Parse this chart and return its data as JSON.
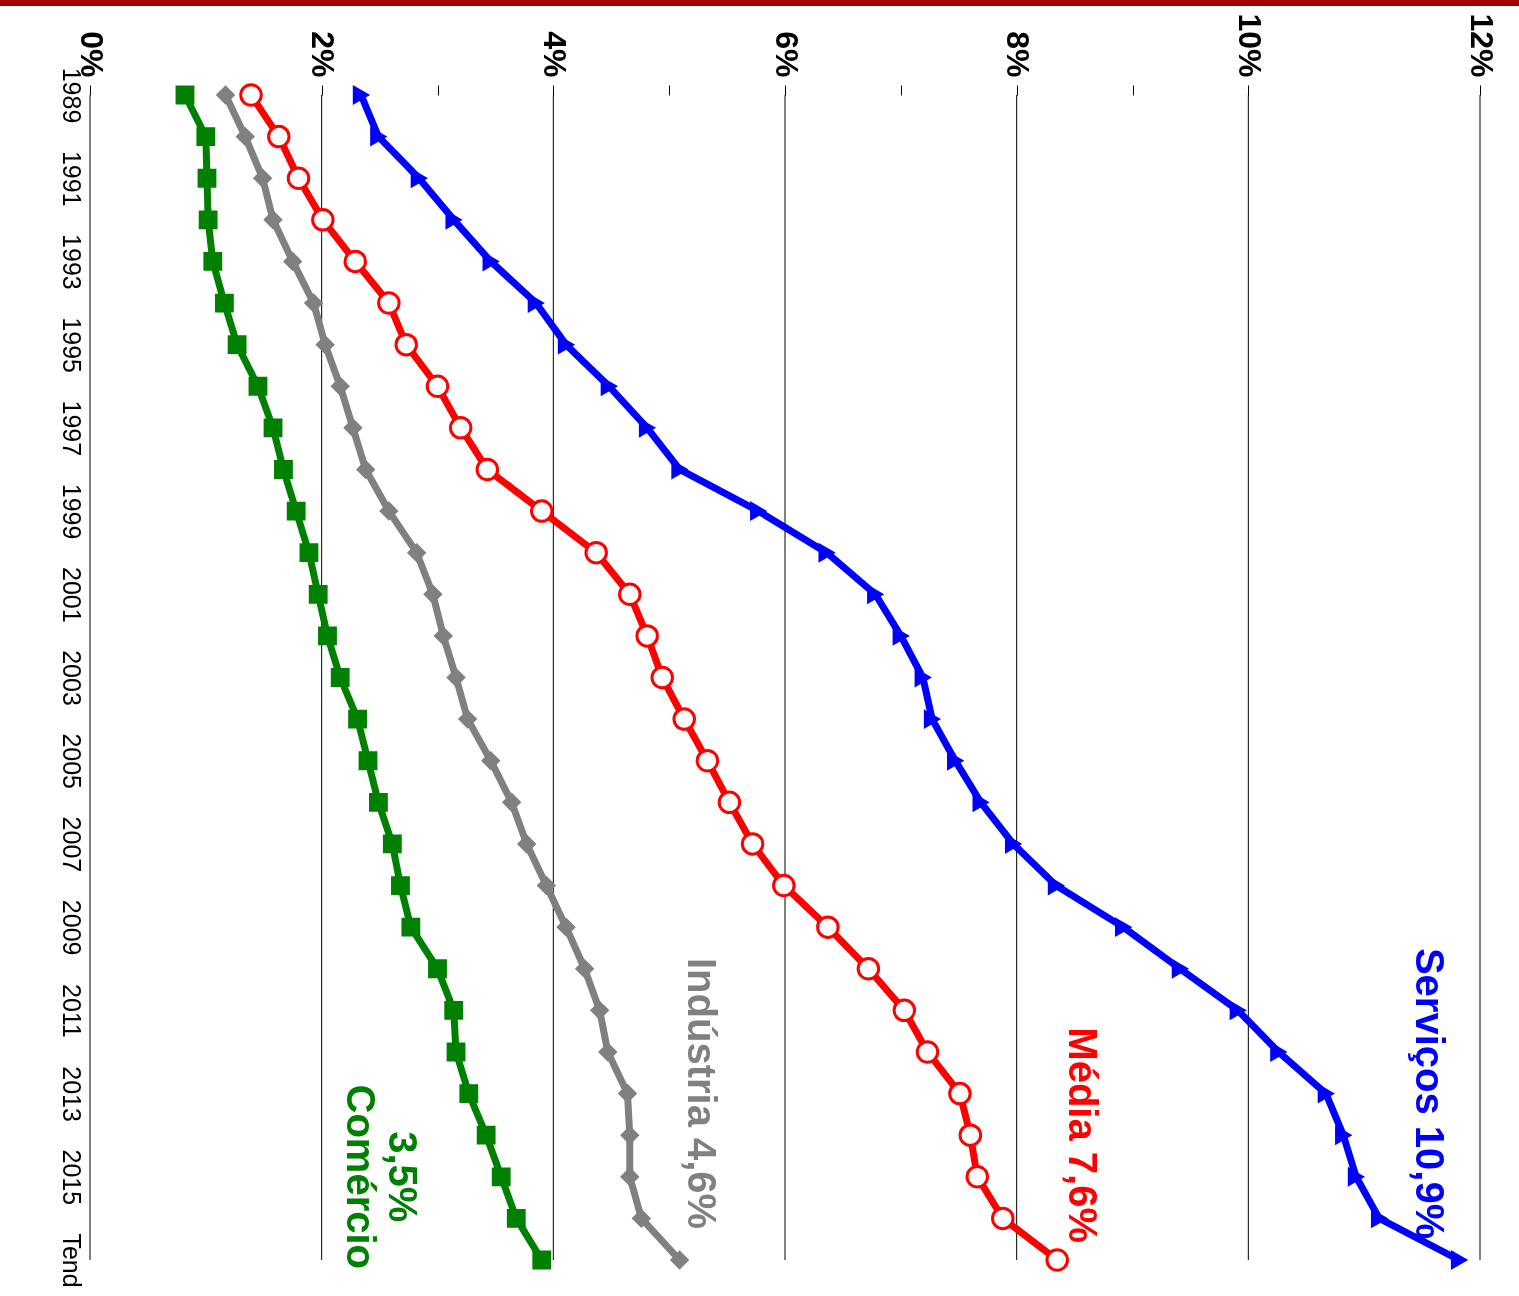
{
  "chart_data": {
    "type": "line",
    "orientation": "horizontal",
    "categories": [
      "1989",
      null,
      "1991",
      null,
      "1993",
      null,
      "1995",
      null,
      "1997",
      null,
      "1999",
      null,
      "2001",
      null,
      "2003",
      null,
      "2005",
      null,
      "2007",
      null,
      "2009",
      null,
      "2011",
      null,
      "2013",
      null,
      "2015",
      null,
      "Tend"
    ],
    "series": [
      {
        "name": "Serviços 10,9%",
        "color": "#0000ff",
        "marker": "triangle",
        "values": [
          2.34,
          2.49,
          2.84,
          3.14,
          3.46,
          3.85,
          4.11,
          4.48,
          4.81,
          5.09,
          5.77,
          6.36,
          6.78,
          7.0,
          7.19,
          7.27,
          7.47,
          7.69,
          7.97,
          8.34,
          8.92,
          9.41,
          9.91,
          10.26,
          10.67,
          10.82,
          10.93,
          11.13,
          11.82
        ]
      },
      {
        "name": "Média 7,6%",
        "color": "#ff0000",
        "marker": "circle",
        "values": [
          1.39,
          1.63,
          1.8,
          2.01,
          2.29,
          2.58,
          2.73,
          3.0,
          3.2,
          3.43,
          3.9,
          4.37,
          4.66,
          4.81,
          4.94,
          5.13,
          5.33,
          5.52,
          5.72,
          5.99,
          6.37,
          6.72,
          7.03,
          7.23,
          7.51,
          7.6,
          7.66,
          7.88,
          8.35
        ]
      },
      {
        "name": "Indústria 4,6%",
        "color": "#808080",
        "marker": "diamond",
        "values": [
          1.17,
          1.34,
          1.49,
          1.58,
          1.75,
          1.93,
          2.03,
          2.16,
          2.27,
          2.38,
          2.58,
          2.82,
          2.96,
          3.05,
          3.16,
          3.26,
          3.46,
          3.64,
          3.77,
          3.94,
          4.11,
          4.27,
          4.4,
          4.47,
          4.64,
          4.66,
          4.66,
          4.76,
          5.09
        ]
      },
      {
        "name": "3,5%\nComércio",
        "color": "#008000",
        "marker": "square",
        "values": [
          0.82,
          1.0,
          1.01,
          1.02,
          1.06,
          1.16,
          1.27,
          1.45,
          1.58,
          1.67,
          1.78,
          1.89,
          1.97,
          2.05,
          2.16,
          2.31,
          2.4,
          2.49,
          2.61,
          2.68,
          2.77,
          3.0,
          3.14,
          3.16,
          3.27,
          3.42,
          3.55,
          3.68,
          3.9
        ]
      }
    ],
    "xlim": [
      0,
      12
    ],
    "xticks": [
      {
        "value": 0,
        "label": "0%"
      },
      {
        "value": 2,
        "label": "2%"
      },
      {
        "value": 3,
        "label": null
      },
      {
        "value": 4,
        "label": "4%"
      },
      {
        "value": 5,
        "label": null
      },
      {
        "value": 6,
        "label": "6%"
      },
      {
        "value": 7,
        "label": null
      },
      {
        "value": 8,
        "label": "8%"
      },
      {
        "value": 9,
        "label": null
      },
      {
        "value": 10,
        "label": "10%"
      },
      {
        "value": 12,
        "label": "12%"
      }
    ],
    "grid": "x"
  }
}
